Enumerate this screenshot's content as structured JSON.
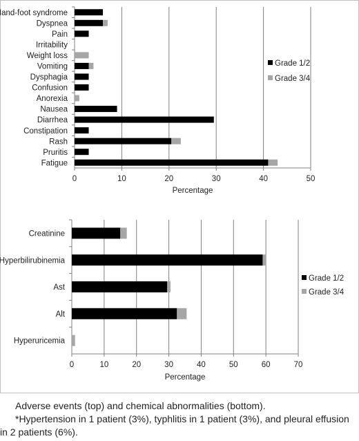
{
  "chart_data": [
    {
      "type": "bar",
      "orientation": "horizontal",
      "stacked": true,
      "categories": [
        "Hand-foot syndrome",
        "Dyspnea",
        "Pain",
        "Irritability",
        "Weight loss",
        "Vomiting",
        "Dysphagia",
        "Confusion",
        "Anorexia",
        "Nausea",
        "Diarrhea",
        "Constipation",
        "Rash",
        "Pruritis",
        "Fatigue"
      ],
      "series": [
        {
          "name": "Grade 1/2",
          "color": "#000000",
          "values": [
            6,
            6,
            3,
            0,
            0,
            3,
            3,
            3,
            0,
            9,
            29.5,
            3,
            20.5,
            3,
            41
          ]
        },
        {
          "name": "Grade 3/4",
          "color": "#a6a6a6",
          "values": [
            0,
            1,
            0,
            0,
            3,
            1,
            0,
            0,
            1,
            0,
            0,
            0,
            2,
            0,
            2
          ]
        }
      ],
      "xlabel": "Percentage",
      "xlim": [
        0,
        50
      ],
      "xticks": [
        "0",
        "10",
        "20",
        "30",
        "40",
        "50"
      ],
      "grid": "vertical",
      "legend": "right"
    },
    {
      "type": "bar",
      "orientation": "horizontal",
      "stacked": true,
      "categories": [
        "Creatinine",
        "Hyperbilirubinemia",
        "Ast",
        "Alt",
        "Hyperuricemia"
      ],
      "series": [
        {
          "name": "Grade 1/2",
          "color": "#000000",
          "values": [
            15,
            59,
            29.5,
            32.5,
            0
          ]
        },
        {
          "name": "Grade 3/4",
          "color": "#a6a6a6",
          "values": [
            2,
            1,
            1,
            3,
            1
          ]
        }
      ],
      "xlabel": "Percentage",
      "xlim": [
        0,
        70
      ],
      "xticks": [
        "0",
        "10",
        "20",
        "30",
        "40",
        "50",
        "60",
        "70"
      ],
      "grid": "vertical",
      "legend": "right"
    }
  ],
  "caption": {
    "line1": "Adverse events (top) and chemical abnormalities (bottom).",
    "line2": "*Hypertension in 1 patient (3%), typhlitis in 1 patient (3%), and pleural effusion in 2 patients (6%)."
  }
}
